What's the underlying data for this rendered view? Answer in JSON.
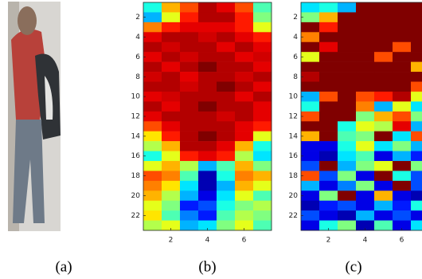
{
  "panels": [
    {
      "label": "(a)"
    }
  ],
  "chart_data": [
    {
      "type": "heatmap",
      "label": "(b)",
      "colormap": "jet",
      "xlim": [
        0.5,
        7.5
      ],
      "ylim": [
        23.5,
        0.5
      ],
      "xticks": [
        2,
        4,
        6
      ],
      "yticks": [
        2,
        4,
        6,
        8,
        10,
        12,
        14,
        16,
        18,
        20,
        22
      ],
      "values": [
        [
          0.4,
          0.7,
          0.8,
          0.95,
          0.9,
          0.8,
          0.45
        ],
        [
          0.3,
          0.6,
          0.85,
          0.95,
          0.95,
          0.85,
          0.5
        ],
        [
          0.75,
          0.85,
          0.9,
          0.9,
          0.9,
          0.85,
          0.6
        ],
        [
          0.9,
          0.95,
          0.95,
          0.92,
          0.95,
          0.9,
          0.85
        ],
        [
          0.95,
          0.92,
          0.95,
          0.95,
          0.9,
          0.95,
          0.9
        ],
        [
          0.9,
          0.95,
          0.92,
          0.95,
          0.95,
          0.9,
          0.92
        ],
        [
          0.95,
          0.9,
          0.95,
          1,
          0.95,
          0.95,
          0.9
        ],
        [
          0.92,
          0.95,
          0.9,
          0.95,
          0.95,
          0.92,
          0.95
        ],
        [
          0.95,
          0.95,
          0.92,
          0.95,
          1,
          0.95,
          0.9
        ],
        [
          0.9,
          0.92,
          0.95,
          0.95,
          0.95,
          0.9,
          0.95
        ],
        [
          0.95,
          0.9,
          0.95,
          1,
          0.95,
          0.95,
          0.9
        ],
        [
          0.9,
          0.95,
          0.95,
          0.95,
          0.92,
          0.95,
          0.9
        ],
        [
          0.8,
          0.9,
          0.95,
          0.95,
          0.95,
          0.9,
          0.85
        ],
        [
          0.65,
          0.85,
          0.95,
          1,
          0.95,
          0.9,
          0.6
        ],
        [
          0.55,
          0.7,
          0.95,
          0.95,
          0.9,
          0.7,
          0.4
        ],
        [
          0.4,
          0.6,
          0.85,
          0.9,
          0.85,
          0.55,
          0.35
        ],
        [
          0.6,
          0.7,
          0.55,
          0.3,
          0.45,
          0.7,
          0.5
        ],
        [
          0.8,
          0.75,
          0.45,
          0.05,
          0.4,
          0.75,
          0.7
        ],
        [
          0.75,
          0.65,
          0.35,
          0.05,
          0.3,
          0.7,
          0.6
        ],
        [
          0.7,
          0.55,
          0.3,
          0.1,
          0.35,
          0.6,
          0.45
        ],
        [
          0.6,
          0.5,
          0.15,
          0.2,
          0.4,
          0.5,
          0.55
        ],
        [
          0.65,
          0.45,
          0.25,
          0.15,
          0.45,
          0.55,
          0.5
        ],
        [
          0.55,
          0.6,
          0.3,
          0.35,
          0.5,
          0.6,
          0.45
        ]
      ]
    },
    {
      "type": "heatmap",
      "label": "(c)",
      "colormap": "jet",
      "xlim": [
        0.5,
        7.5
      ],
      "ylim": [
        23.5,
        0.5
      ],
      "xticks": [
        2,
        4,
        6
      ],
      "yticks": [
        2,
        4,
        6,
        8,
        10,
        12,
        14,
        16,
        18,
        20,
        22
      ],
      "values": [
        [
          0.35,
          0.4,
          0.3,
          1,
          1,
          1,
          1
        ],
        [
          0.5,
          0.7,
          1,
          1,
          1,
          1,
          1
        ],
        [
          1,
          0.85,
          1,
          1,
          1,
          1,
          1
        ],
        [
          0.75,
          1,
          1,
          1,
          1,
          1,
          1
        ],
        [
          1,
          0.9,
          1,
          1,
          1,
          0.8,
          1
        ],
        [
          0.6,
          1,
          1,
          1,
          0.8,
          1,
          1
        ],
        [
          1,
          1,
          1,
          1,
          1,
          1,
          0.7
        ],
        [
          0.95,
          1,
          1,
          1,
          1,
          1,
          1
        ],
        [
          1,
          1,
          1,
          1,
          1,
          1,
          0.8
        ],
        [
          0.3,
          0.8,
          1,
          0.8,
          0.85,
          0.95,
          0.6
        ],
        [
          0.4,
          1,
          1,
          0.75,
          0.3,
          0.6,
          0.35
        ],
        [
          0.8,
          1,
          1,
          0.5,
          0.7,
          0.8,
          0.5
        ],
        [
          1,
          1,
          0.4,
          0.6,
          0.55,
          0.9,
          0.3
        ],
        [
          0.7,
          1,
          0.45,
          0.5,
          1,
          0.35,
          0.8
        ],
        [
          0.1,
          0.1,
          0.4,
          0.6,
          0.35,
          0.5,
          0.3
        ],
        [
          0.1,
          0.05,
          0.35,
          0.45,
          0.1,
          0.3,
          0.15
        ],
        [
          0.2,
          1,
          0.3,
          0.5,
          0.6,
          1,
          0.5
        ],
        [
          0.8,
          0.2,
          0.5,
          0.1,
          1,
          0.4,
          0.2
        ],
        [
          0.3,
          0.1,
          0.25,
          0.5,
          0.1,
          1,
          0.2
        ],
        [
          0.1,
          0.5,
          1,
          0.1,
          0.7,
          0.1,
          0.05
        ],
        [
          0.05,
          0.15,
          0.2,
          0.1,
          0.3,
          0.15,
          0.4
        ],
        [
          0.2,
          0.1,
          0.05,
          0.3,
          0.1,
          0.2,
          0.1
        ],
        [
          0.1,
          0.4,
          0.5,
          0.05,
          0.45,
          0.1,
          0.35
        ]
      ]
    }
  ]
}
